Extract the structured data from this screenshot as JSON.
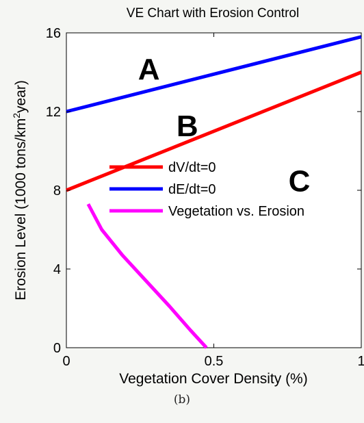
{
  "chart_data": {
    "type": "line",
    "title": "VE Chart with Erosion Control",
    "xlabel": "Vegetation Cover Density (%)",
    "ylabel": "Erosion Level (1000 tons/km²year)",
    "xlim": [
      0,
      1
    ],
    "ylim": [
      0,
      16
    ],
    "xticks": [
      0,
      0.5,
      1
    ],
    "xtick_labels": [
      "0",
      "0.5",
      "1"
    ],
    "yticks": [
      0,
      4,
      8,
      12,
      16
    ],
    "ytick_labels": [
      "0",
      "4",
      "8",
      "12",
      "16"
    ],
    "grid": false,
    "legend_position": "center-right",
    "series": [
      {
        "name": "dV/dt=0",
        "color": "#ff0000",
        "x": [
          0,
          1
        ],
        "y": [
          8,
          14
        ]
      },
      {
        "name": "dE/dt=0",
        "color": "#0000ff",
        "x": [
          0,
          1
        ],
        "y": [
          12,
          15.8
        ]
      },
      {
        "name": "Vegetation vs. Erosion",
        "color": "#ff00ff",
        "x": [
          0.074,
          0.12,
          0.19,
          0.27,
          0.35,
          0.42,
          0.475
        ],
        "y": [
          7.3,
          6.0,
          4.7,
          3.4,
          2.1,
          0.9,
          0
        ]
      }
    ],
    "annotations": [
      {
        "text": "A",
        "x": 0.28,
        "y": 14.2
      },
      {
        "text": "B",
        "x": 0.41,
        "y": 11.3
      },
      {
        "text": "C",
        "x": 0.79,
        "y": 8.5
      }
    ]
  },
  "caption": "(b)"
}
